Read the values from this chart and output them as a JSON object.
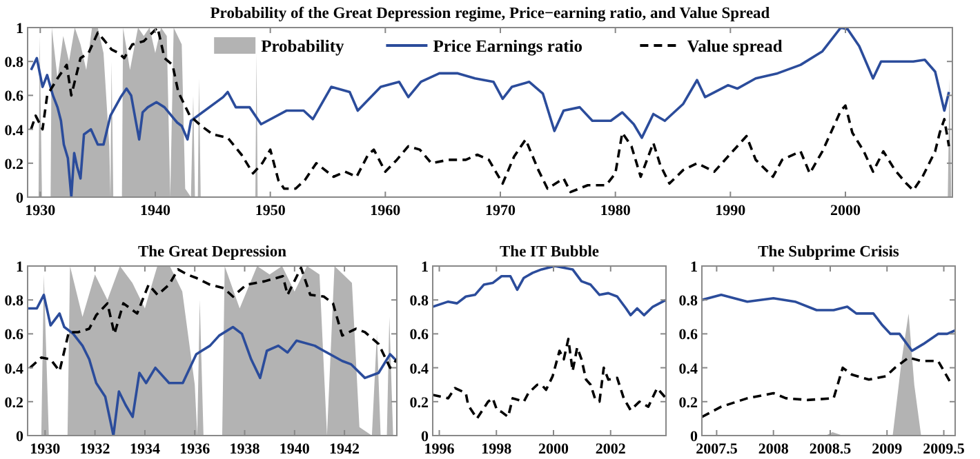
{
  "chart_data": [
    {
      "type": "line",
      "title": "Probability of the Great Depression regime, Price−earning ratio, and Value Spread",
      "xlim": [
        1928.9,
        2009.3
      ],
      "xticks": [
        1930,
        1940,
        1950,
        1960,
        1970,
        1980,
        1990,
        2000
      ],
      "ylim": [
        0,
        1
      ],
      "yticks": [
        0,
        0.2,
        0.4,
        0.6,
        0.8,
        1
      ],
      "legend": "top",
      "grid": false,
      "series": [
        {
          "name": "Probability",
          "type": "area",
          "color": "#b3b3b3",
          "x": [
            1929.3,
            1929.85,
            1929.95,
            1930.15,
            1930.9,
            1931.0,
            1931.5,
            1932,
            1932.5,
            1933,
            1933.5,
            1934,
            1934.5,
            1935,
            1935.5,
            1936,
            1936.1,
            1936.2,
            1936.35,
            1937.1,
            1937.2,
            1937.8,
            1938.5,
            1939,
            1939.5,
            1940,
            1940.5,
            1941,
            1941.3,
            1941.6,
            1942.3,
            1942.6,
            1943.1,
            1943.3,
            1943.45,
            1943.7,
            1943.8,
            1943.95,
            1948.7,
            1948.8,
            1948.9,
            2008.9,
            2009.05,
            2009.2
          ],
          "values": [
            0,
            0,
            0.95,
            0,
            0,
            1,
            0.7,
            0.95,
            0.8,
            1,
            0.9,
            0.75,
            1,
            1,
            0.85,
            0.3,
            0,
            0.8,
            0,
            0,
            1,
            0.75,
            1,
            0.95,
            1,
            0.85,
            1,
            0.95,
            0,
            1,
            0.9,
            0.05,
            0,
            0.6,
            0,
            0,
            0.7,
            0,
            0,
            0.85,
            0,
            0,
            0.7,
            0
          ]
        },
        {
          "name": "Price Earnings ratio",
          "type": "line",
          "color": "#2b4c9b",
          "line_style": "solid",
          "x": [
            1929.2,
            1929.7,
            1930.2,
            1930.6,
            1931.1,
            1931.5,
            1931.8,
            1932.05,
            1932.4,
            1932.7,
            1932.95,
            1933.2,
            1933.5,
            1933.8,
            1934.4,
            1935,
            1935.5,
            1936.1,
            1937,
            1937.5,
            1937.9,
            1938.3,
            1938.6,
            1938.9,
            1939.35,
            1940.1,
            1940.8,
            1941.9,
            1942.3,
            1942.8,
            1943.1,
            1945.9,
            1946.3,
            1947,
            1948.2,
            1949.2,
            1951.4,
            1952.9,
            1953.7,
            1955.3,
            1956.9,
            1957.6,
            1959.6,
            1961.2,
            1962,
            1963.1,
            1964.7,
            1966.3,
            1967.8,
            1969.4,
            1970.2,
            1971,
            1972.5,
            1973.7,
            1974.7,
            1975.5,
            1976.9,
            1978,
            1979.6,
            1980.6,
            1981.6,
            1982.3,
            1983.3,
            1984.3,
            1985.9,
            1987.1,
            1987.8,
            1989.8,
            1990.6,
            1992.2,
            1994.1,
            1996.1,
            1998,
            1999.6,
            2000.2,
            2001.2,
            2002.4,
            2003.1,
            2005.9,
            2006.9,
            2007.8,
            2008.6,
            2009
          ],
          "values": [
            0.75,
            0.82,
            0.65,
            0.72,
            0.6,
            0.53,
            0.45,
            0.31,
            0.23,
            0,
            0.26,
            0.18,
            0.11,
            0.37,
            0.4,
            0.31,
            0.31,
            0.48,
            0.59,
            0.64,
            0.6,
            0.45,
            0.34,
            0.5,
            0.53,
            0.56,
            0.53,
            0.44,
            0.42,
            0.34,
            0.45,
            0.59,
            0.62,
            0.53,
            0.53,
            0.43,
            0.51,
            0.51,
            0.46,
            0.65,
            0.62,
            0.51,
            0.65,
            0.68,
            0.59,
            0.68,
            0.73,
            0.73,
            0.7,
            0.68,
            0.58,
            0.65,
            0.68,
            0.61,
            0.39,
            0.51,
            0.53,
            0.45,
            0.45,
            0.5,
            0.43,
            0.35,
            0.49,
            0.45,
            0.55,
            0.69,
            0.59,
            0.66,
            0.64,
            0.7,
            0.73,
            0.78,
            0.86,
            1,
            0.99,
            0.89,
            0.7,
            0.8,
            0.8,
            0.81,
            0.74,
            0.51,
            0.62
          ]
        },
        {
          "name": "Value spread",
          "type": "line",
          "color": "#000000",
          "line_style": "dashed",
          "x": [
            1929.2,
            1929.6,
            1930.2,
            1930.6,
            1931.5,
            1932.3,
            1932.7,
            1933.5,
            1934.2,
            1935,
            1935.5,
            1936.2,
            1936.8,
            1937.3,
            1938,
            1939,
            1940.2,
            1940.8,
            1941.5,
            1942,
            1943,
            1944,
            1945,
            1946.3,
            1947.5,
            1948.5,
            1949.3,
            1950,
            1950.7,
            1951.2,
            1952.2,
            1953,
            1954,
            1955.5,
            1956.5,
            1957.5,
            1958.5,
            1959,
            1960,
            1961,
            1962,
            1963,
            1964,
            1965.5,
            1967,
            1968,
            1969,
            1970.2,
            1971.2,
            1972.2,
            1973.3,
            1974.1,
            1975.5,
            1976.1,
            1977.6,
            1979.2,
            1980,
            1980.6,
            1981.4,
            1982.2,
            1983.3,
            1983.9,
            1984.7,
            1985.9,
            1987.1,
            1988.6,
            1990.2,
            1991.4,
            1992.2,
            1993.7,
            1994.5,
            1996.1,
            1996.9,
            1998,
            1999.6,
            2000,
            2000.6,
            2001.6,
            2002.4,
            2003.3,
            2004.3,
            2005.3,
            2005.9,
            2006.7,
            2007.8,
            2008.2,
            2008.6,
            2009
          ],
          "values": [
            0.4,
            0.48,
            0.4,
            0.6,
            0.7,
            0.78,
            0.6,
            0.82,
            0.85,
            0.97,
            0.93,
            0.87,
            0.85,
            0.82,
            0.9,
            0.92,
            1,
            0.82,
            0.78,
            0.62,
            0.48,
            0.42,
            0.37,
            0.35,
            0.25,
            0.14,
            0.2,
            0.28,
            0.1,
            0.05,
            0.05,
            0.1,
            0.2,
            0.12,
            0.15,
            0.12,
            0.25,
            0.28,
            0.15,
            0.22,
            0.3,
            0.28,
            0.2,
            0.22,
            0.22,
            0.25,
            0.22,
            0.08,
            0.24,
            0.34,
            0.16,
            0.05,
            0.11,
            0.03,
            0.07,
            0.07,
            0.14,
            0.38,
            0.3,
            0.12,
            0.32,
            0.19,
            0.08,
            0.16,
            0.2,
            0.15,
            0.27,
            0.36,
            0.22,
            0.12,
            0.22,
            0.27,
            0.14,
            0.27,
            0.51,
            0.54,
            0.38,
            0.27,
            0.15,
            0.27,
            0.16,
            0.08,
            0.04,
            0.12,
            0.27,
            0.38,
            0.46,
            0.3
          ]
        }
      ]
    },
    {
      "type": "line",
      "title": "The Great Depression",
      "xlim": [
        1929.3,
        1944.1
      ],
      "xticks": [
        1930,
        1932,
        1934,
        1936,
        1938,
        1940,
        1942
      ],
      "ylim": [
        0,
        1
      ],
      "yticks": [
        0,
        0.2,
        0.4,
        0.6,
        0.8,
        1
      ],
      "grid": false,
      "series": [
        {
          "type": "area",
          "color": "#b3b3b3",
          "x": [
            1929.3,
            1929.85,
            1929.95,
            1930.15,
            1930.9,
            1931.0,
            1931.5,
            1932,
            1932.5,
            1933,
            1933.5,
            1934,
            1934.5,
            1935,
            1935.5,
            1936,
            1936.1,
            1936.2,
            1936.35,
            1937.1,
            1937.2,
            1937.8,
            1938.5,
            1939,
            1939.5,
            1940,
            1940.5,
            1941,
            1941.3,
            1941.6,
            1942.3,
            1942.6,
            1943.1,
            1943.3,
            1943.45,
            1943.7,
            1943.8,
            1943.95,
            1944.1
          ],
          "values": [
            0,
            0,
            0.95,
            0,
            0,
            1,
            0.7,
            0.95,
            0.8,
            1,
            0.9,
            0.75,
            1,
            1,
            0.85,
            0.3,
            0,
            0.8,
            0,
            0,
            1,
            0.75,
            1,
            0.95,
            1,
            0.85,
            1,
            0.95,
            0,
            1,
            0.9,
            0.05,
            0,
            0.6,
            0,
            0,
            0.7,
            0,
            0
          ]
        },
        {
          "type": "line",
          "color": "#2b4c9b",
          "line_style": "solid",
          "x": [
            1929.31,
            1929.67,
            1929.95,
            1930.22,
            1930.58,
            1930.77,
            1931.13,
            1931.5,
            1931.77,
            1932.05,
            1932.41,
            1932.74,
            1932.96,
            1933.23,
            1933.51,
            1933.78,
            1934.05,
            1934.42,
            1934.97,
            1935.52,
            1936.06,
            1936.61,
            1936.98,
            1937.53,
            1937.89,
            1938.26,
            1938.62,
            1938.89,
            1939.35,
            1939.72,
            1940.08,
            1940.81,
            1941.17,
            1941.91,
            1942.27,
            1942.82,
            1943.37,
            1943.83,
            1944.1
          ],
          "values": [
            0.75,
            0.75,
            0.83,
            0.65,
            0.72,
            0.64,
            0.6,
            0.53,
            0.45,
            0.31,
            0.23,
            0,
            0.26,
            0.18,
            0.11,
            0.37,
            0.31,
            0.4,
            0.31,
            0.31,
            0.48,
            0.53,
            0.59,
            0.64,
            0.6,
            0.45,
            0.34,
            0.5,
            0.53,
            0.49,
            0.56,
            0.53,
            0.5,
            0.44,
            0.42,
            0.34,
            0.37,
            0.48,
            0.44
          ]
        },
        {
          "type": "line",
          "color": "#000000",
          "line_style": "dashed",
          "x": [
            1929.4,
            1929.85,
            1930.22,
            1930.58,
            1930.95,
            1931.32,
            1931.77,
            1932.05,
            1932.5,
            1932.78,
            1933.14,
            1933.69,
            1934.15,
            1934.51,
            1934.97,
            1935.33,
            1935.7,
            1936.06,
            1936.61,
            1937.16,
            1937.53,
            1938.07,
            1938.8,
            1939.53,
            1939.72,
            1940.26,
            1940.63,
            1941.17,
            1941.54,
            1941.91,
            1942.46,
            1942.82,
            1943.37,
            1943.83,
            1944.1
          ],
          "values": [
            0.4,
            0.46,
            0.45,
            0.38,
            0.61,
            0.61,
            0.63,
            0.71,
            0.78,
            0.6,
            0.78,
            0.72,
            0.89,
            0.83,
            0.89,
            0.98,
            0.95,
            0.93,
            0.89,
            0.87,
            0.82,
            0.89,
            0.91,
            0.94,
            0.83,
            0.99,
            0.83,
            0.82,
            0.78,
            0.59,
            0.63,
            0.61,
            0.54,
            0.4,
            0.45
          ]
        }
      ]
    },
    {
      "type": "line",
      "title": "The IT Bubble",
      "xlim": [
        1995.77,
        2003.94
      ],
      "xticks": [
        1996,
        1998,
        2000,
        2002
      ],
      "ylim": [
        0,
        1
      ],
      "yticks": [
        0,
        0.2,
        0.4,
        0.6,
        0.8,
        1
      ],
      "grid": false,
      "series": [
        {
          "type": "line",
          "color": "#2b4c9b",
          "line_style": "solid",
          "x": [
            1995.77,
            1996.31,
            1996.62,
            1996.93,
            1997.25,
            1997.56,
            1997.87,
            1998.18,
            1998.49,
            1998.73,
            1998.96,
            1999.27,
            1999.58,
            2000.05,
            2000.36,
            2000.67,
            2000.98,
            2001.3,
            2001.61,
            2001.92,
            2002.23,
            2002.54,
            2002.7,
            2002.93,
            2003.17,
            2003.48,
            2003.94
          ],
          "values": [
            0.76,
            0.79,
            0.78,
            0.82,
            0.83,
            0.89,
            0.9,
            0.94,
            0.94,
            0.86,
            0.93,
            0.96,
            0.98,
            1,
            0.99,
            0.98,
            0.91,
            0.89,
            0.83,
            0.84,
            0.82,
            0.75,
            0.71,
            0.75,
            0.71,
            0.76,
            0.8
          ]
        },
        {
          "type": "line",
          "color": "#000000",
          "line_style": "dashed",
          "x": [
            1995.77,
            1996.31,
            1996.55,
            1996.93,
            1997.01,
            1997.32,
            1997.71,
            1997.87,
            1998.02,
            1998.18,
            1998.41,
            1998.57,
            1998.96,
            1999.12,
            1999.43,
            1999.58,
            1999.74,
            1999.97,
            2000.21,
            2000.36,
            2000.52,
            2000.67,
            2000.83,
            2000.98,
            2001.14,
            2001.3,
            2001.45,
            2001.61,
            2001.76,
            2001.92,
            2002.23,
            2002.46,
            2002.7,
            2003.01,
            2003.32,
            2003.63,
            2003.94
          ],
          "values": [
            0.24,
            0.22,
            0.28,
            0.25,
            0.18,
            0.1,
            0.2,
            0.22,
            0.15,
            0.14,
            0.11,
            0.22,
            0.2,
            0.25,
            0.3,
            0.3,
            0.27,
            0.35,
            0.5,
            0.45,
            0.57,
            0.38,
            0.52,
            0.45,
            0.33,
            0.3,
            0.22,
            0.2,
            0.4,
            0.33,
            0.34,
            0.22,
            0.15,
            0.2,
            0.17,
            0.28,
            0.22
          ]
        }
      ]
    },
    {
      "type": "line",
      "title": "The Subprime Crisis",
      "xlim": [
        2007.37,
        2009.6
      ],
      "xticks": [
        2007.5,
        2008,
        2008.5,
        2009,
        2009.5
      ],
      "ylim": [
        0,
        1
      ],
      "yticks": [
        0,
        0.2,
        0.4,
        0.6,
        0.8,
        1
      ],
      "grid": false,
      "series": [
        {
          "type": "area",
          "color": "#b3b3b3",
          "x": [
            2007.37,
            2008.46,
            2008.52,
            2008.61,
            2009.05,
            2009.13,
            2009.19,
            2009.24,
            2009.3,
            2009.6
          ],
          "values": [
            0,
            0,
            0.02,
            0,
            0,
            0.45,
            0.72,
            0.3,
            0,
            0
          ]
        },
        {
          "type": "line",
          "color": "#2b4c9b",
          "line_style": "solid",
          "x": [
            2007.37,
            2007.54,
            2007.77,
            2008.0,
            2008.19,
            2008.38,
            2008.53,
            2008.65,
            2008.73,
            2008.88,
            2008.96,
            2009.03,
            2009.11,
            2009.22,
            2009.32,
            2009.45,
            2009.53,
            2009.6
          ],
          "values": [
            0.8,
            0.83,
            0.79,
            0.81,
            0.79,
            0.74,
            0.74,
            0.76,
            0.72,
            0.72,
            0.65,
            0.6,
            0.6,
            0.5,
            0.54,
            0.6,
            0.6,
            0.62
          ]
        },
        {
          "type": "line",
          "color": "#000000",
          "line_style": "dashed",
          "x": [
            2007.37,
            2007.54,
            2007.77,
            2008.0,
            2008.11,
            2008.3,
            2008.53,
            2008.61,
            2008.69,
            2008.84,
            2008.99,
            2009.07,
            2009.19,
            2009.3,
            2009.45,
            2009.57
          ],
          "values": [
            0.11,
            0.17,
            0.22,
            0.25,
            0.22,
            0.21,
            0.22,
            0.4,
            0.36,
            0.33,
            0.35,
            0.4,
            0.46,
            0.44,
            0.44,
            0.3
          ]
        }
      ]
    }
  ]
}
